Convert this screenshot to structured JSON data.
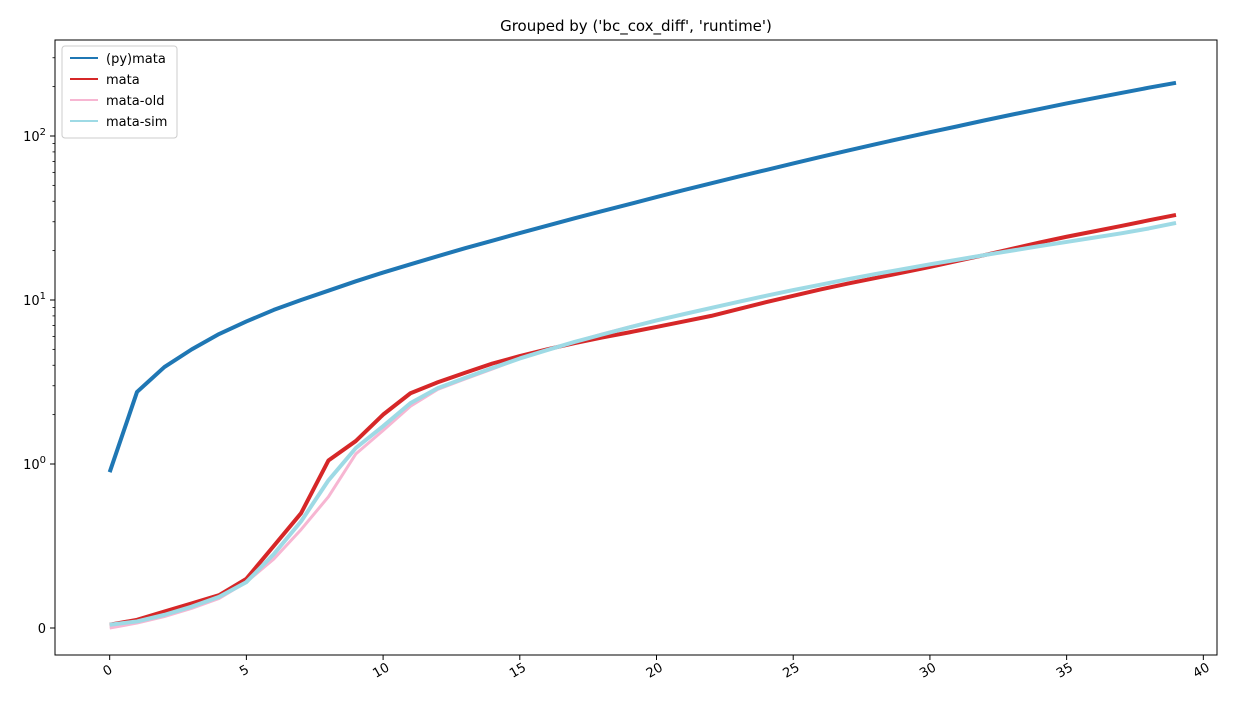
{
  "chart_data": {
    "type": "line",
    "title": "Grouped by ('bc_cox_diff', 'runtime')",
    "xlabel": "",
    "ylabel": "",
    "xlim": [
      -2,
      40.5
    ],
    "x_ticks": [
      0,
      5,
      10,
      15,
      20,
      25,
      30,
      35,
      40
    ],
    "x_tick_labels": [
      "0",
      "5",
      "10",
      "15",
      "20",
      "25",
      "30",
      "35",
      "40"
    ],
    "y_scale": "symlog",
    "y_linthresh": 1,
    "y_ticks": [
      0,
      1,
      10,
      100
    ],
    "y_tick_labels": [
      "0",
      "10^0",
      "10^1",
      "10^2"
    ],
    "grid": false,
    "legend_position": "top-left",
    "x": [
      0,
      1,
      2,
      3,
      4,
      5,
      6,
      7,
      8,
      9,
      10,
      11,
      12,
      13,
      14,
      15,
      16,
      17,
      18,
      19,
      20,
      21,
      22,
      23,
      24,
      25,
      26,
      27,
      28,
      29,
      30,
      31,
      32,
      33,
      34,
      35,
      36,
      37,
      38,
      39
    ],
    "series": [
      {
        "name": "(py)mata",
        "color": "#1f77b4",
        "width": 4,
        "values": [
          0.95,
          2.75,
          3.9,
          5.0,
          6.2,
          7.4,
          8.7,
          10.0,
          11.4,
          13.0,
          14.7,
          16.5,
          18.5,
          20.7,
          23.0,
          25.6,
          28.4,
          31.5,
          34.8,
          38.4,
          42.4,
          46.8,
          51.5,
          56.6,
          62.0,
          68.0,
          74.5,
          81.5,
          89.0,
          97.0,
          105.5,
          114.5,
          124.5,
          135.0,
          146.0,
          158.0,
          170.0,
          183.0,
          197.0,
          211.0
        ]
      },
      {
        "name": "mata",
        "color": "#d62728",
        "width": 4,
        "values": [
          0.02,
          0.05,
          0.1,
          0.15,
          0.2,
          0.3,
          0.5,
          0.7,
          1.05,
          1.38,
          2.0,
          2.7,
          3.15,
          3.6,
          4.1,
          4.55,
          5.0,
          5.45,
          5.9,
          6.35,
          6.85,
          7.4,
          8.0,
          8.8,
          9.7,
          10.6,
          11.6,
          12.6,
          13.6,
          14.7,
          15.9,
          17.3,
          18.8,
          20.5,
          22.4,
          24.3,
          26.2,
          28.3,
          30.6,
          33.0
        ]
      },
      {
        "name": "mata-old",
        "color": "#f7b6d2",
        "width": 3,
        "values": [
          0.0,
          0.03,
          0.07,
          0.12,
          0.18,
          0.28,
          0.42,
          0.6,
          0.8,
          1.15,
          1.6,
          2.25,
          2.85,
          3.3,
          3.8,
          4.4,
          4.95,
          5.55,
          6.2,
          6.85,
          7.5,
          8.2,
          8.95,
          9.75,
          10.6,
          11.5,
          12.4,
          13.4,
          14.4,
          15.4,
          16.5,
          17.6,
          18.8,
          20.0,
          21.3,
          22.6,
          24.0,
          25.5,
          27.3,
          29.5
        ]
      },
      {
        "name": "mata-sim",
        "color": "#9edae5",
        "width": 4,
        "values": [
          0.02,
          0.04,
          0.08,
          0.13,
          0.19,
          0.28,
          0.45,
          0.65,
          0.9,
          1.25,
          1.7,
          2.35,
          2.9,
          3.35,
          3.85,
          4.4,
          4.95,
          5.55,
          6.15,
          6.8,
          7.5,
          8.2,
          8.95,
          9.75,
          10.6,
          11.5,
          12.4,
          13.4,
          14.4,
          15.4,
          16.5,
          17.6,
          18.8,
          20.0,
          21.3,
          22.6,
          24.0,
          25.5,
          27.3,
          29.5
        ]
      }
    ]
  }
}
